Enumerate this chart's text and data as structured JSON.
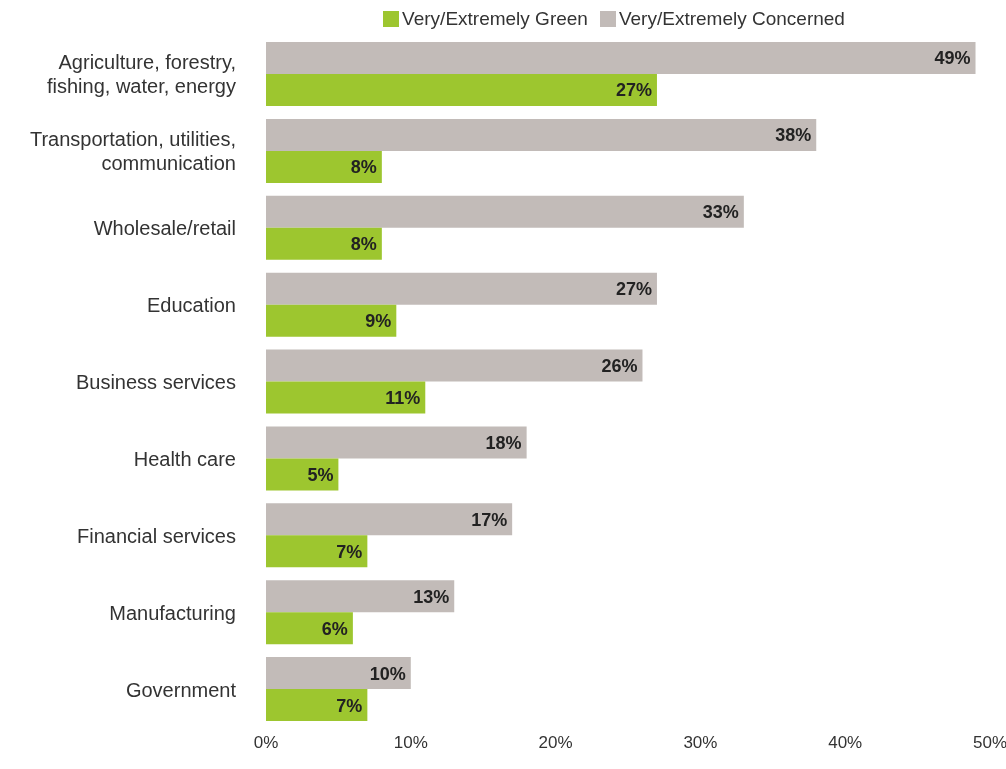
{
  "chart_data": {
    "type": "bar",
    "orientation": "horizontal",
    "categories": [
      "Agriculture, forestry, fishing, water, energy",
      "Transportation, utilities, communication",
      "Wholesale/retail",
      "Education",
      "Business services",
      "Health care",
      "Financial services",
      "Manufacturing",
      "Government"
    ],
    "series": [
      {
        "name": "Very/Extremely Concerned",
        "color": "#c2bbb8",
        "values": [
          49,
          38,
          33,
          27,
          26,
          18,
          17,
          13,
          10
        ],
        "value_labels": [
          "49%",
          "38%",
          "33%",
          "27%",
          "26%",
          "18%",
          "17%",
          "13%",
          "10%"
        ]
      },
      {
        "name": "Very/Extremely Green",
        "color": "#9dc62f",
        "values": [
          27,
          8,
          8,
          9,
          11,
          5,
          7,
          6,
          7
        ],
        "value_labels": [
          "27%",
          "8%",
          "8%",
          "9%",
          "11%",
          "5%",
          "7%",
          "6%",
          "7%"
        ]
      }
    ],
    "xlim": [
      0,
      50
    ],
    "xticks": [
      {
        "value": 0,
        "label": "0%"
      },
      {
        "value": 10,
        "label": "10%"
      },
      {
        "value": 20,
        "label": "20%"
      },
      {
        "value": 30,
        "label": "30%"
      },
      {
        "value": 40,
        "label": "40%"
      },
      {
        "value": 50,
        "label": "50%"
      }
    ],
    "legend": "top",
    "grid": false
  }
}
